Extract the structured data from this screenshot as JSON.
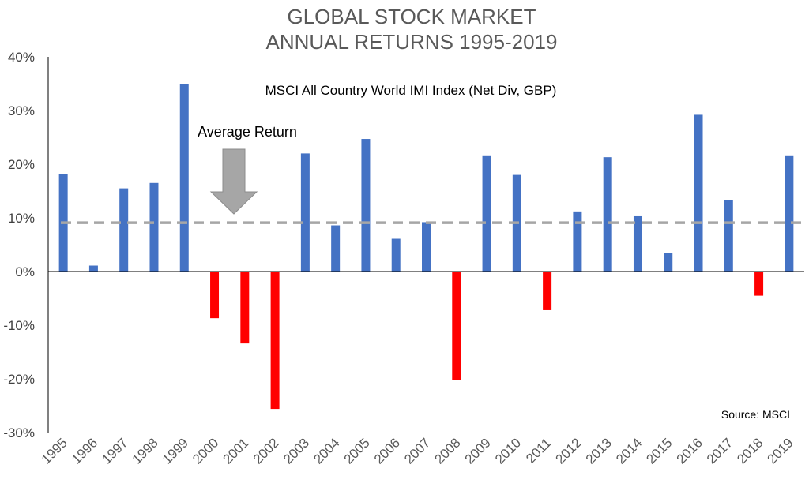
{
  "chart_data": {
    "type": "bar",
    "title_line1": "GLOBAL STOCK MARKET",
    "title_line2": "ANNUAL RETURNS 1995-2019",
    "subtitle": "MSCI All Country World IMI Index (Net Div, GBP)",
    "annotation": "Average Return",
    "source": "Source: MSCI",
    "categories": [
      "1995",
      "1996",
      "1997",
      "1998",
      "1999",
      "2000",
      "2001",
      "2002",
      "2003",
      "2004",
      "2005",
      "2006",
      "2007",
      "2008",
      "2009",
      "2010",
      "2011",
      "2012",
      "2013",
      "2014",
      "2015",
      "2016",
      "2017",
      "2018",
      "2019"
    ],
    "values": [
      18.2,
      1.1,
      15.5,
      16.5,
      34.9,
      -8.7,
      -13.4,
      -25.6,
      22.0,
      8.6,
      24.7,
      6.1,
      9.2,
      -20.2,
      21.5,
      18.0,
      -7.2,
      11.2,
      21.3,
      10.3,
      3.5,
      29.2,
      13.3,
      -4.5,
      21.5
    ],
    "average": 9.1,
    "ylim": [
      -30,
      40
    ],
    "yticks": [
      40,
      30,
      20,
      10,
      0,
      -10,
      -20,
      -30
    ],
    "ytick_labels": [
      "40%",
      "30%",
      "20%",
      "10%",
      "0%",
      "-10%",
      "-20%",
      "-30%"
    ],
    "colors": {
      "positive": "#4472C4",
      "negative": "#FF0000",
      "average_line": "#A6A6A6",
      "arrow": "#A6A6A6",
      "axis": "#000000"
    },
    "grid": false
  }
}
